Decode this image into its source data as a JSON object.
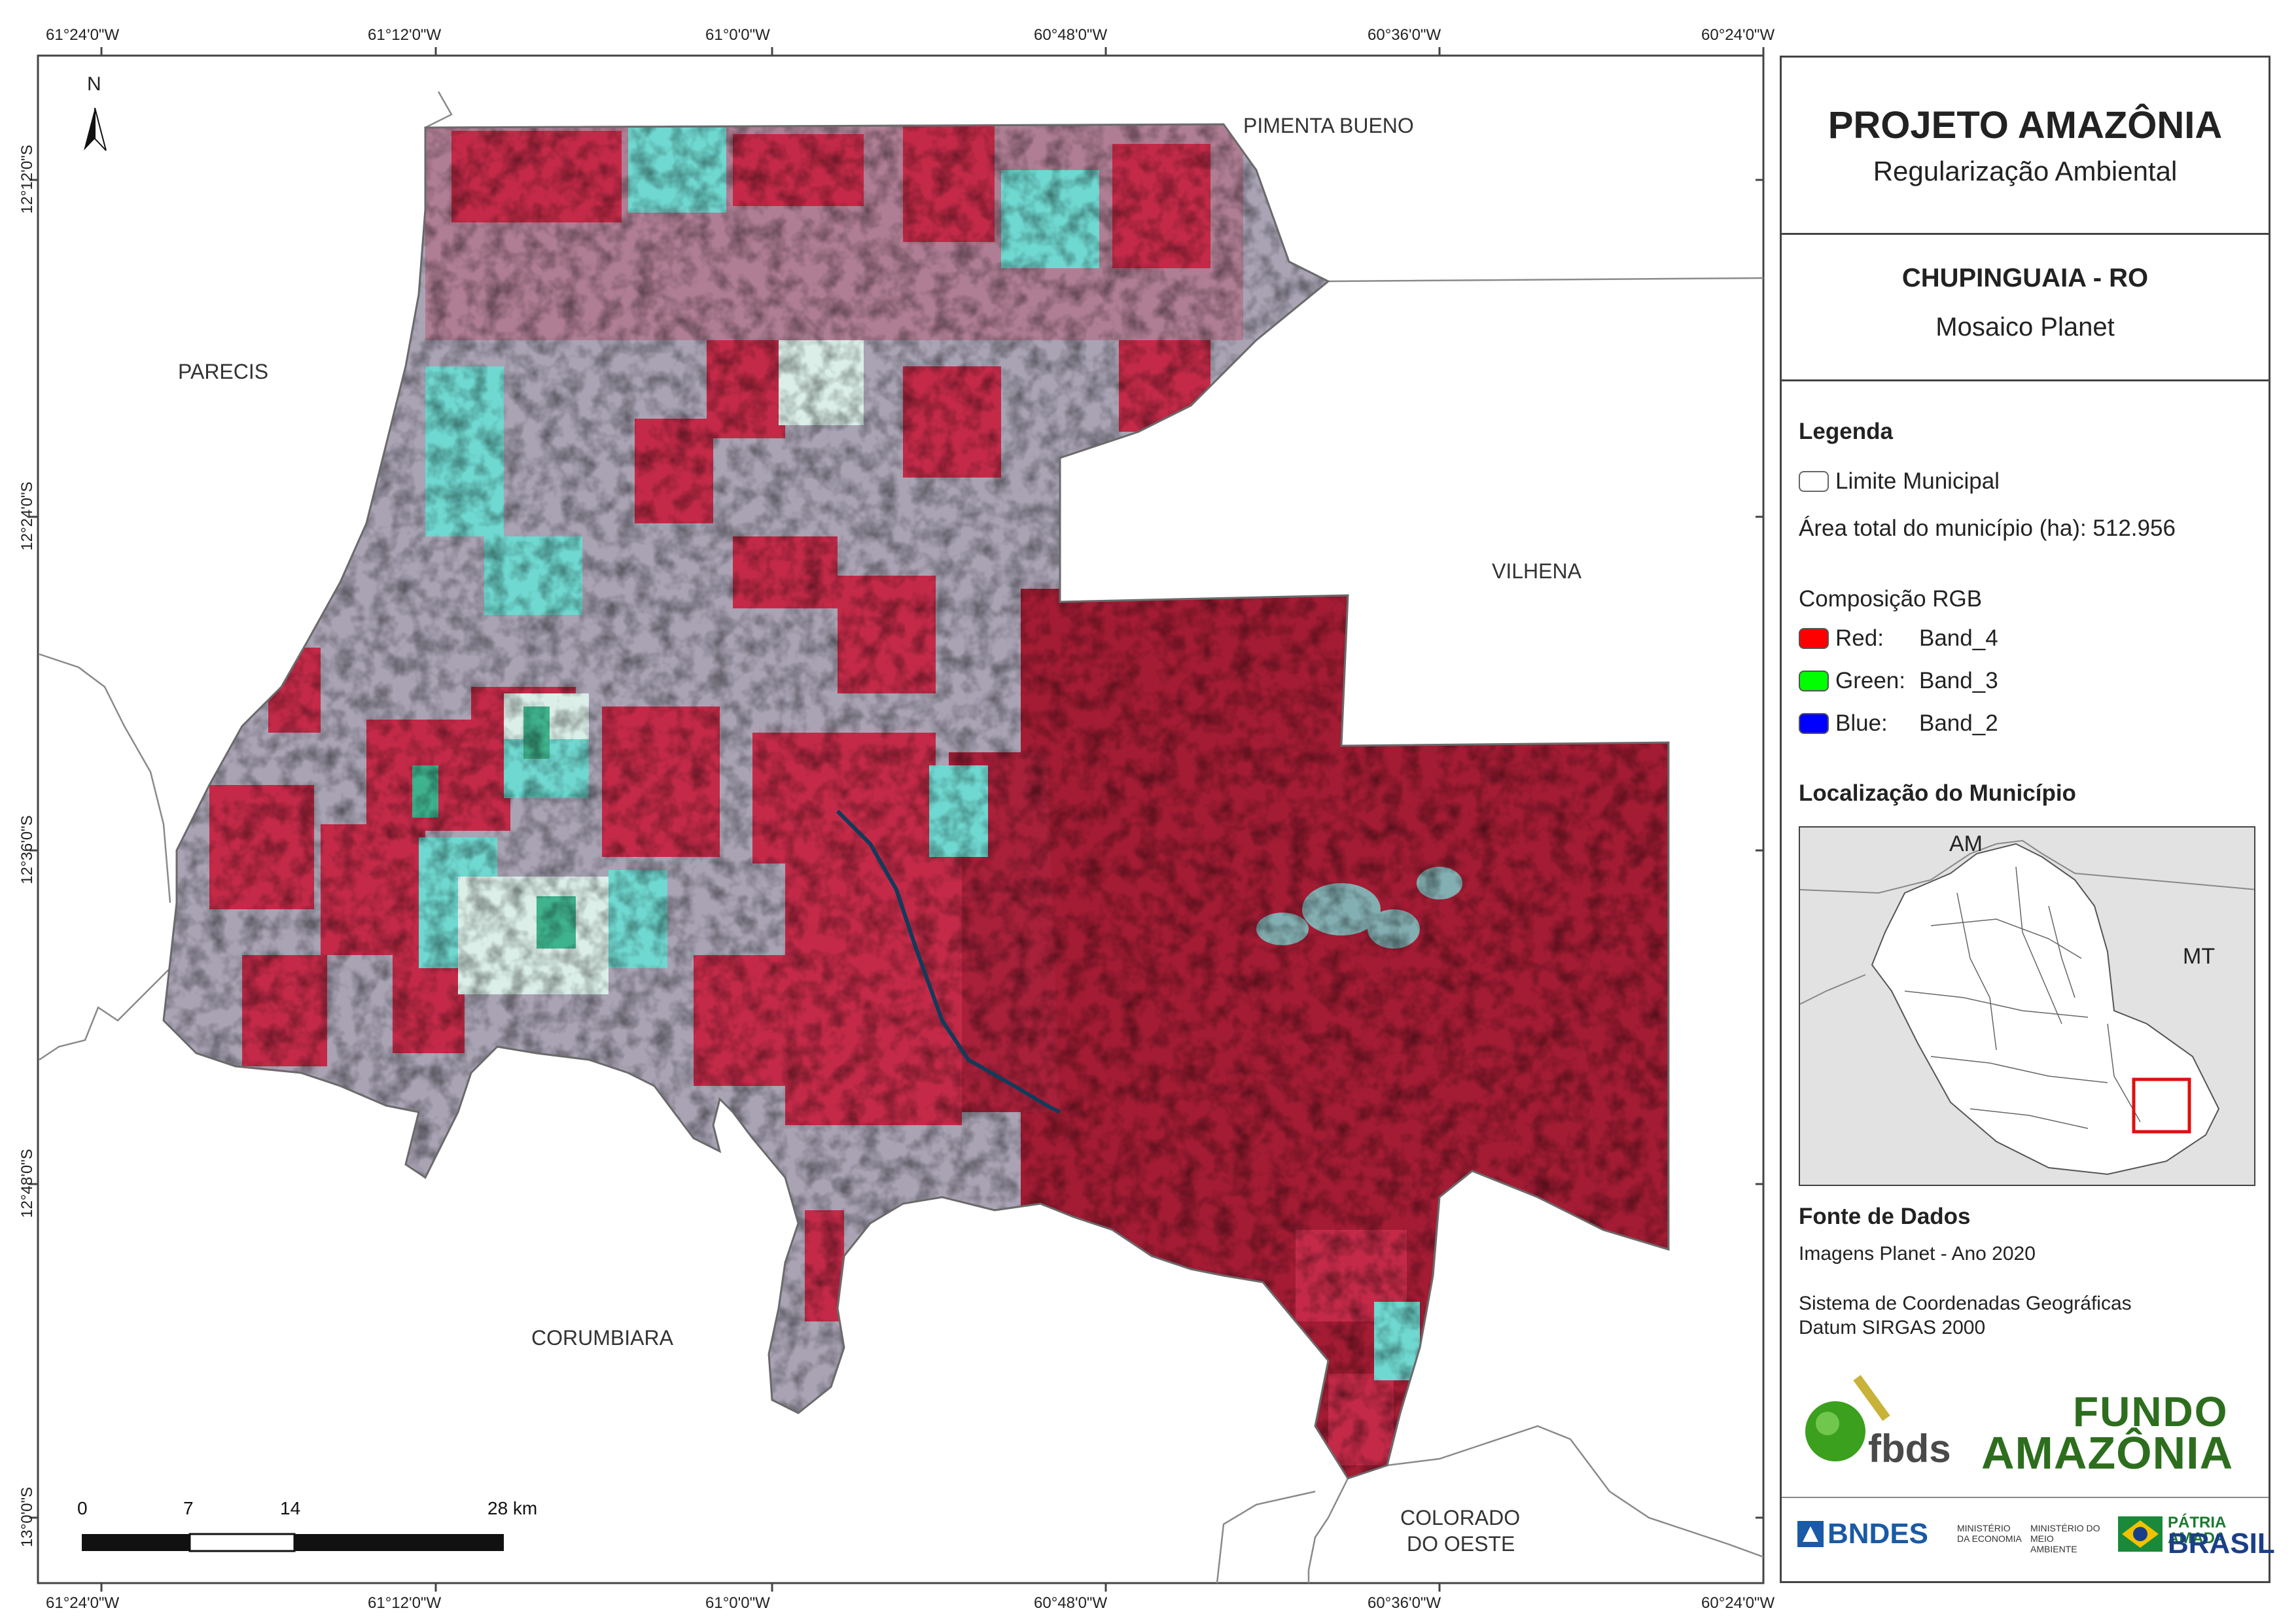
{
  "map": {
    "coordinates_top": [
      "61°24'0\"W",
      "61°12'0\"W",
      "61°0'0\"W",
      "60°48'0\"W",
      "60°36'0\"W",
      "60°24'0\"W"
    ],
    "coordinates_bottom": [
      "61°24'0\"W",
      "61°12'0\"W",
      "61°0'0\"W",
      "60°48'0\"W",
      "60°36'0\"W",
      "60°24'0\"W"
    ],
    "coordinates_left": [
      "12°12'0\"S",
      "12°24'0\"S",
      "12°36'0\"S",
      "12°48'0\"S",
      "13°0'0\"S"
    ],
    "north_arrow": "N",
    "neighbors": {
      "pimenta_bueno": "PIMENTA BUENO",
      "parecis": "PARECIS",
      "vilhena": "VILHENA",
      "corumbiara": "CORUMBIARA",
      "colorado_line1": "COLORADO",
      "colorado_line2": "DO OESTE"
    },
    "scale_labels": [
      "0",
      "7",
      "14",
      "28 km"
    ],
    "colors": {
      "forest_red": "#b0203a",
      "cleared_cyan": "#6fd8d0",
      "grey_mixed": "#a9a3b4",
      "neighbor_line": "#888888"
    }
  },
  "panel": {
    "title": "PROJETO AMAZÔNIA",
    "subtitle": "Regularização Ambiental",
    "municipality": "CHUPINGUAIA - RO",
    "municipality_sub": "Mosaico Planet",
    "legend_title": "Legenda",
    "limit_label": "Limite Municipal",
    "area_text": "Área total do município (ha): 512.956",
    "rgb_title": "Composição RGB",
    "bands": [
      {
        "label": "Red:",
        "value": "Band_4",
        "color": "#ff0000"
      },
      {
        "label": "Green:",
        "value": "Band_3",
        "color": "#00ff00"
      },
      {
        "label": "Blue:",
        "value": "Band_2",
        "color": "#0000ff"
      }
    ],
    "location_title": "Localização do Município",
    "inset_labels": {
      "am": "AM",
      "mt": "MT"
    },
    "sources_title": "Fonte de Dados",
    "source_line1": "Imagens Planet - Ano 2020",
    "source_line2": "Sistema de Coordenadas Geográficas",
    "source_line3": "Datum SIRGAS 2000",
    "logos": {
      "fbds": "fbds",
      "fundo": "FUNDO",
      "amazonia": "AMAZÔNIA",
      "bndes": "BNDES",
      "min_econ": "MINISTÉRIO DA ECONOMIA",
      "min_amb": "MINISTÉRIO DO MEIO AMBIENTE",
      "patria": "PÁTRIA AMADA",
      "brasil": "BRASIL"
    }
  }
}
